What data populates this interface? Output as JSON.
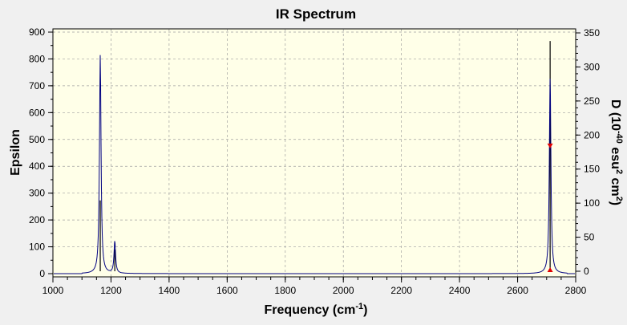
{
  "chart_data": {
    "type": "line",
    "title": "IR Spectrum",
    "xlabel": "Frequency (cm",
    "xlabel_sup": "-1",
    "xlabel_end": ")",
    "ylabel": "Epsilon",
    "y2label_parts": [
      "D (10",
      "-40",
      " esu",
      "2",
      " cm",
      "2",
      ")"
    ],
    "xlim": [
      1000,
      2800
    ],
    "ylim": [
      0,
      900
    ],
    "y2lim": [
      0,
      350
    ],
    "x_ticks": [
      "1000",
      "1200",
      "1400",
      "1600",
      "1800",
      "2000",
      "2200",
      "2400",
      "2600",
      "2800"
    ],
    "y_ticks": [
      "0",
      "100",
      "200",
      "300",
      "400",
      "500",
      "600",
      "700",
      "800",
      "900"
    ],
    "y2_ticks": [
      "0",
      "50",
      "100",
      "150",
      "200",
      "250",
      "300",
      "350"
    ],
    "grid": true,
    "plot_background": "#ffffe8",
    "colors": {
      "spectrum": "#000080",
      "sticks": "#000000",
      "markers": "#e00000",
      "grid": "#a0a0a0"
    },
    "series": [
      {
        "kind": "spectrum",
        "peaks": [
          {
            "x": 1163,
            "epsilon": 815
          },
          {
            "x": 1213,
            "epsilon": 120
          },
          {
            "x": 2712,
            "epsilon": 735
          }
        ]
      },
      {
        "kind": "stick",
        "values": [
          {
            "x": 1163,
            "D": 104
          },
          {
            "x": 1213,
            "D": 32
          },
          {
            "x": 2712,
            "D": 338
          }
        ]
      }
    ],
    "markers": [
      {
        "x": 2712,
        "D": 184,
        "shape": "triangle-down"
      },
      {
        "x": 2712,
        "D": 0,
        "shape": "triangle-up"
      }
    ]
  }
}
